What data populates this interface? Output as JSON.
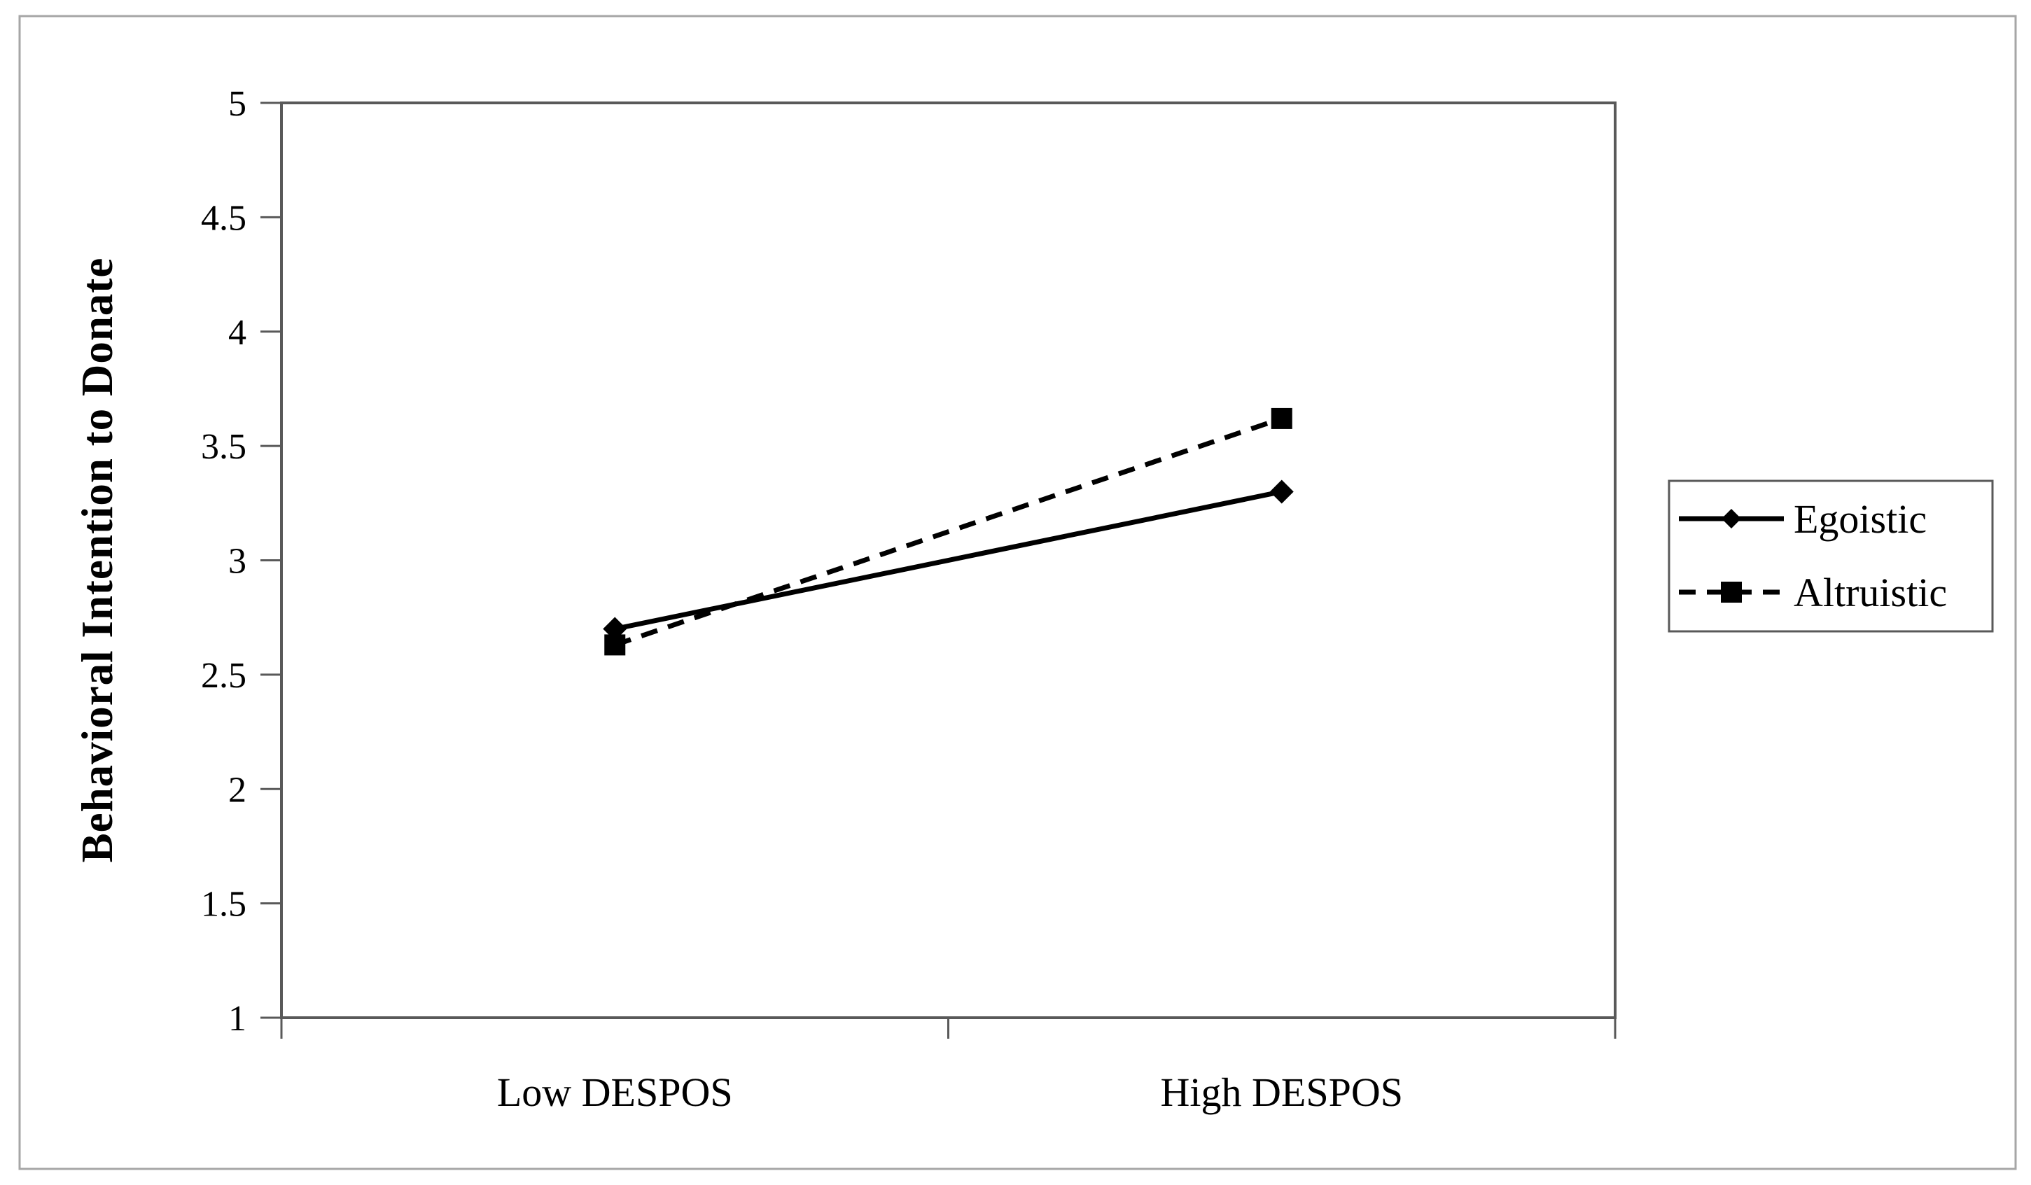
{
  "figure": {
    "background": "#ffffff",
    "outer_border_color": "#a6a6a6",
    "axis_color": "#595959",
    "series_color": "#000000",
    "text_color": "#000000"
  },
  "chart_data": {
    "type": "line",
    "title": "",
    "xlabel": "",
    "ylabel": "Behavioral Intention to Donate",
    "categories": [
      "Low DESPOS",
      "High DESPOS"
    ],
    "series": [
      {
        "name": "Egoistic",
        "values": [
          2.7,
          3.3
        ],
        "line_style": "solid",
        "marker": "diamond"
      },
      {
        "name": "Altruistic",
        "values": [
          2.63,
          3.62
        ],
        "line_style": "dashed",
        "marker": "square"
      }
    ],
    "ylim": [
      1,
      5
    ],
    "ytick_step": 0.5,
    "ytick_labels": [
      "1",
      "1.5",
      "2",
      "2.5",
      "3",
      "3.5",
      "4",
      "4.5",
      "5"
    ],
    "grid": false,
    "legend_position": "right-outside"
  }
}
